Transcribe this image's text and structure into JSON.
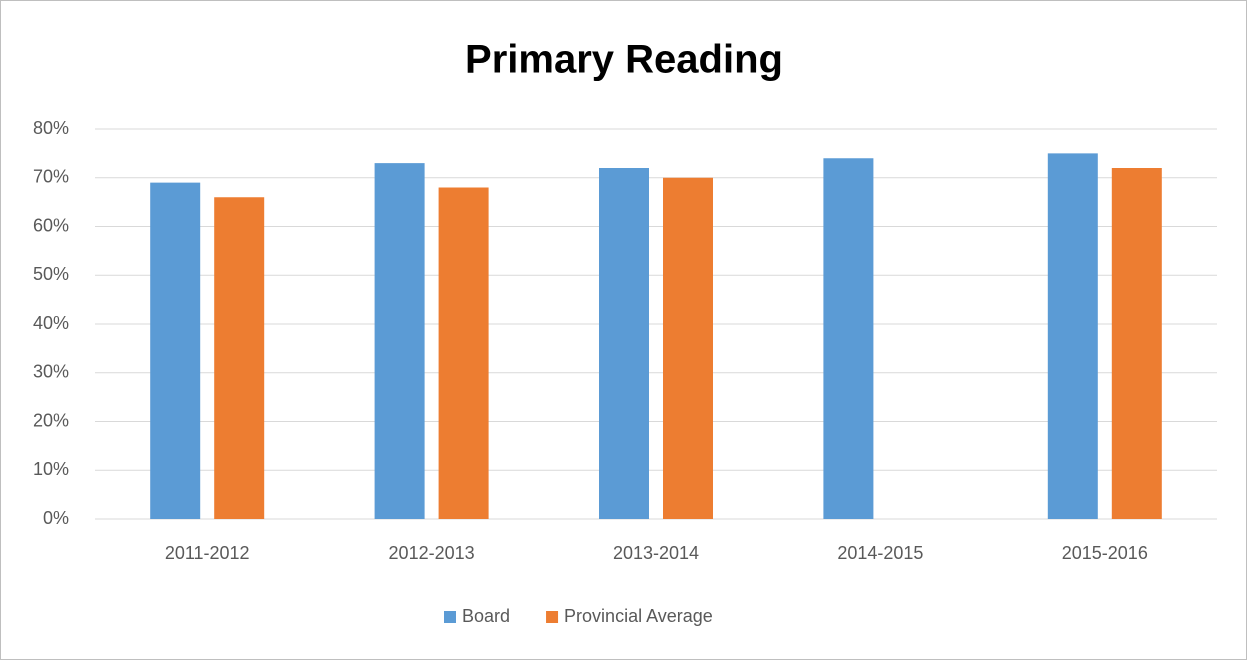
{
  "chart_data": {
    "type": "bar",
    "title": "Primary Reading",
    "categories": [
      "2011-2012",
      "2012-2013",
      "2013-2014",
      "2014-2015",
      "2015-2016"
    ],
    "series": [
      {
        "name": "Board",
        "color": "#5b9bd5",
        "values": [
          69,
          73,
          72,
          74,
          75
        ]
      },
      {
        "name": "Provincial Average",
        "color": "#ed7d31",
        "values": [
          66,
          68,
          70,
          null,
          72
        ]
      }
    ],
    "ylim": [
      0,
      80
    ],
    "yticks": [
      {
        "value": 0,
        "label": "0%"
      },
      {
        "value": 10,
        "label": "10%"
      },
      {
        "value": 20,
        "label": "20%"
      },
      {
        "value": 30,
        "label": "30%"
      },
      {
        "value": 40,
        "label": "40%"
      },
      {
        "value": 50,
        "label": "50%"
      },
      {
        "value": 60,
        "label": "60%"
      },
      {
        "value": 70,
        "label": "70%"
      },
      {
        "value": 80,
        "label": "80%"
      }
    ],
    "grid": true,
    "legend": "bottom"
  }
}
